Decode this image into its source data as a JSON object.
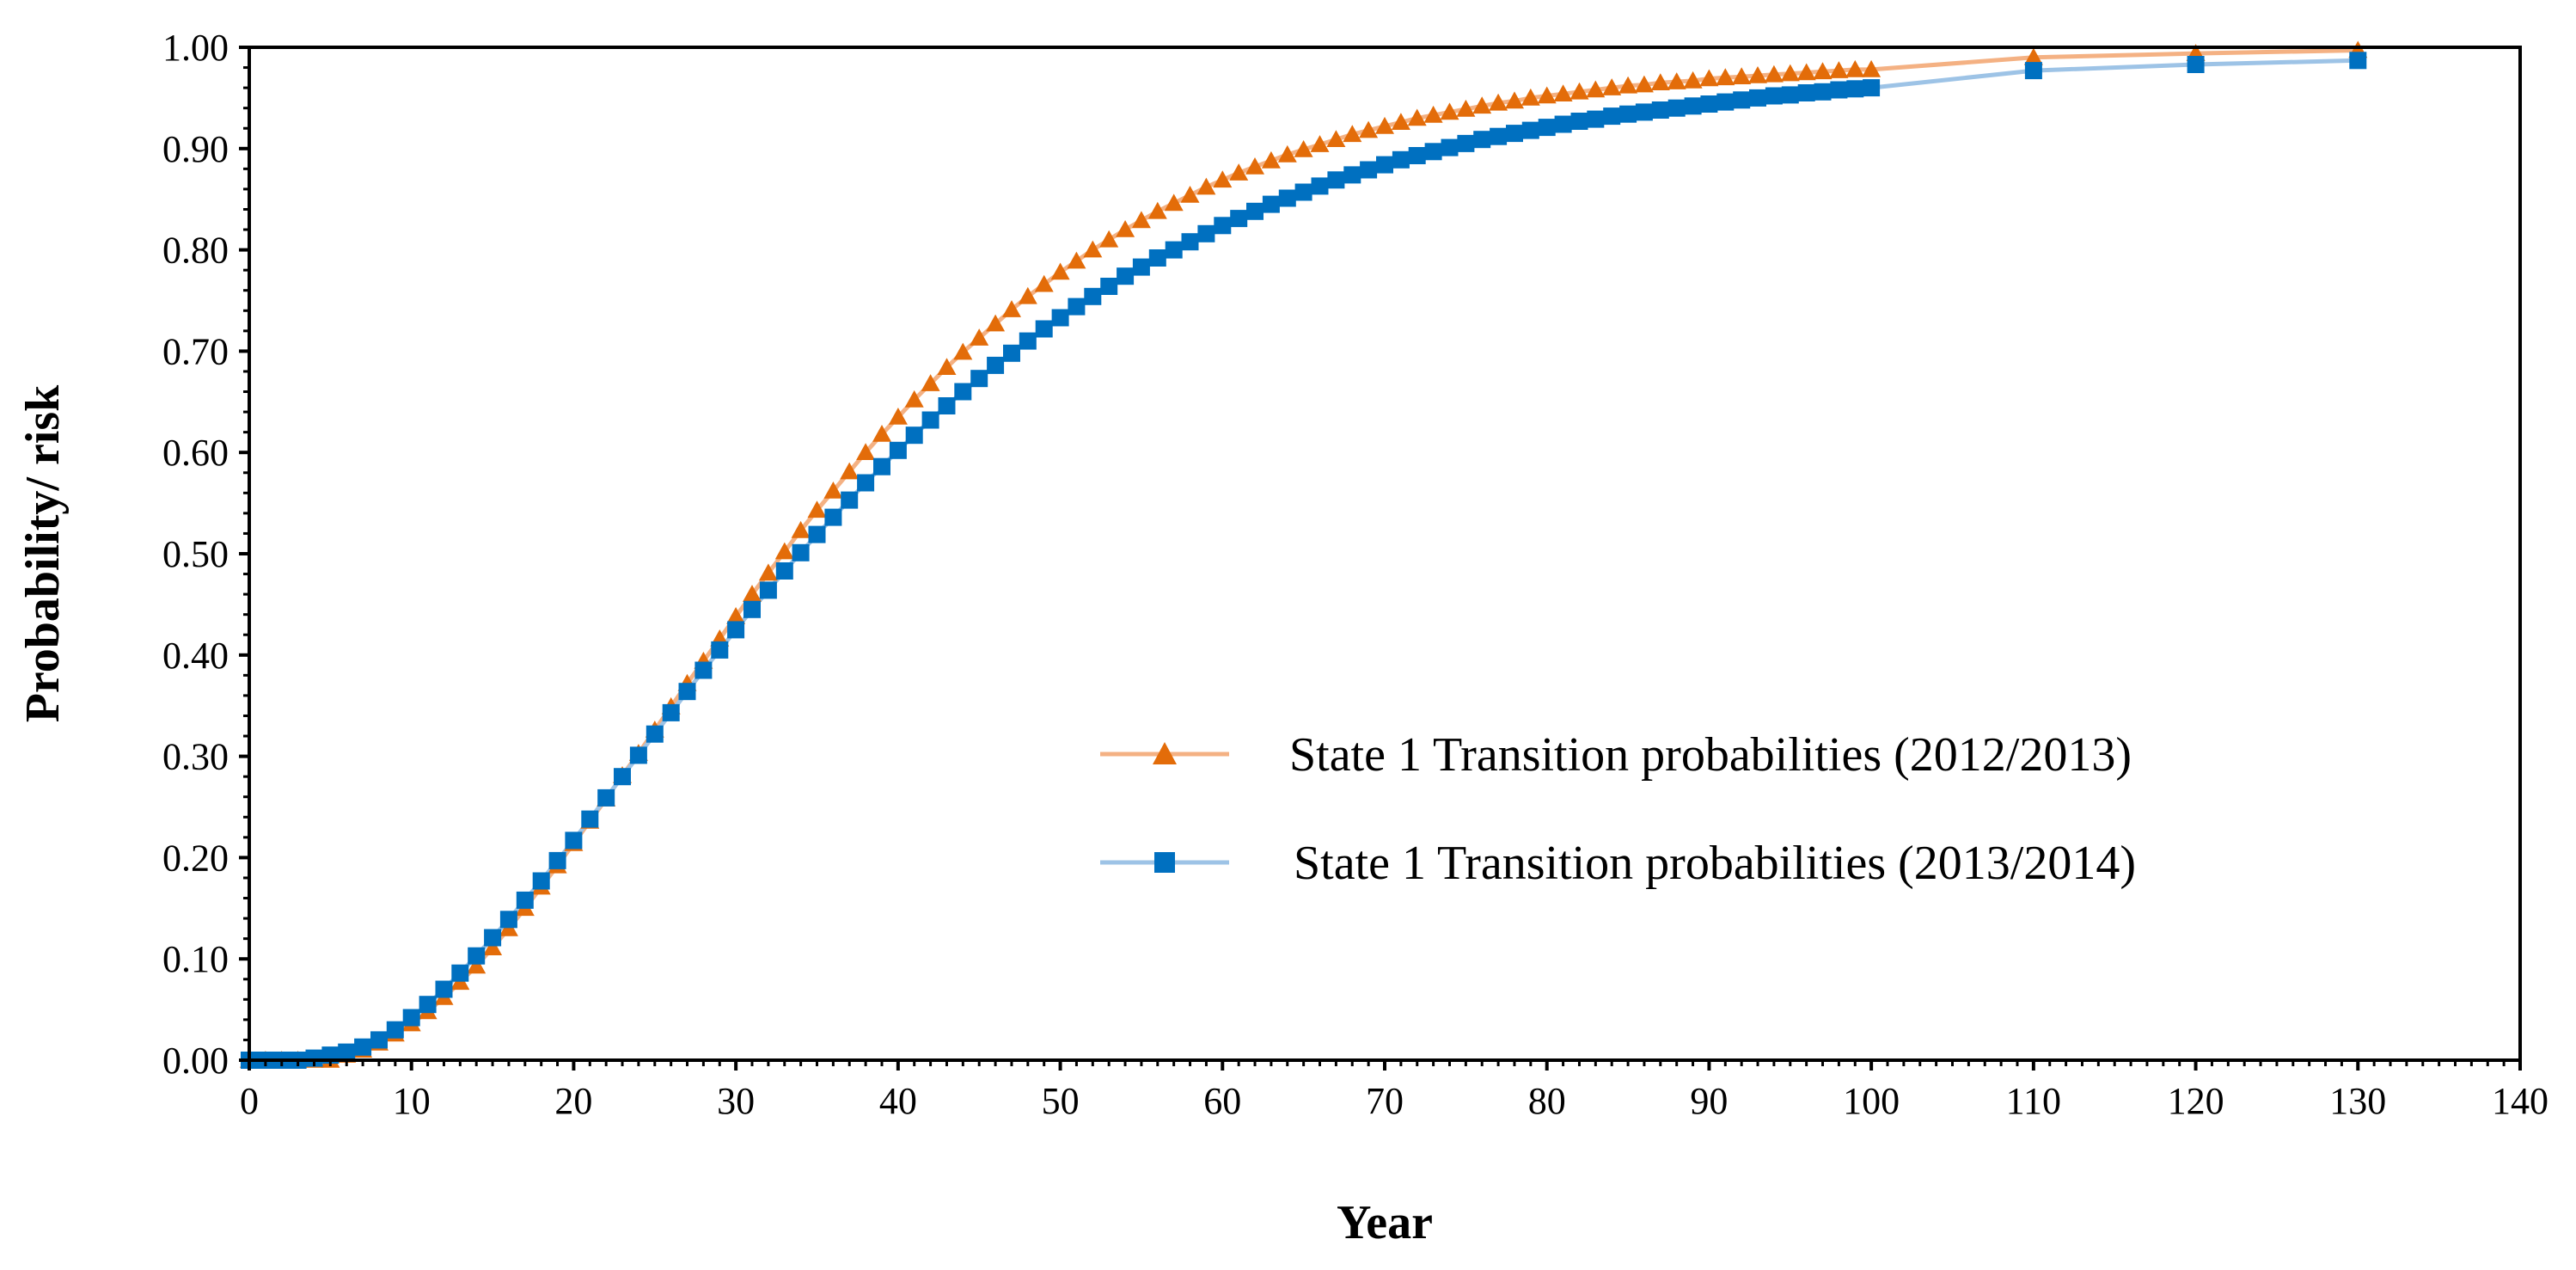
{
  "chart_data": {
    "type": "line",
    "xlabel": "Year",
    "ylabel": "Probability/ risk",
    "xlim": [
      0,
      140
    ],
    "ylim": [
      0,
      1
    ],
    "x_ticks": [
      "0",
      "10",
      "20",
      "30",
      "40",
      "50",
      "60",
      "70",
      "80",
      "90",
      "100",
      "110",
      "120",
      "130",
      "140"
    ],
    "y_ticks": [
      "0.00",
      "0.10",
      "0.20",
      "0.30",
      "0.40",
      "0.50",
      "0.60",
      "0.70",
      "0.80",
      "0.90",
      "1.00"
    ],
    "grid": false,
    "legend_position": "center-right",
    "series": [
      {
        "name": "State 1 Transition probabilities (2012/2013)",
        "color": "#e36c09",
        "line_color": "#f4b183",
        "marker": "triangle",
        "x": [
          0,
          1,
          2,
          3,
          4,
          5,
          6,
          7,
          8,
          9,
          10,
          11,
          12,
          13,
          14,
          15,
          16,
          17,
          18,
          19,
          20,
          21,
          22,
          23,
          24,
          25,
          26,
          27,
          28,
          29,
          30,
          31,
          32,
          33,
          34,
          35,
          36,
          37,
          38,
          39,
          40,
          41,
          42,
          43,
          44,
          45,
          46,
          47,
          48,
          49,
          50,
          51,
          52,
          53,
          54,
          55,
          56,
          57,
          58,
          59,
          60,
          61,
          62,
          63,
          64,
          65,
          66,
          67,
          68,
          69,
          70,
          71,
          72,
          73,
          74,
          75,
          76,
          77,
          78,
          79,
          80,
          81,
          82,
          83,
          84,
          85,
          86,
          87,
          88,
          89,
          90,
          91,
          92,
          93,
          94,
          95,
          96,
          97,
          98,
          99,
          100,
          110,
          120,
          130
        ],
        "y": [
          0,
          0,
          0,
          0,
          0,
          0,
          0.005,
          0.01,
          0.017,
          0.026,
          0.036,
          0.048,
          0.062,
          0.077,
          0.093,
          0.111,
          0.13,
          0.15,
          0.171,
          0.192,
          0.214,
          0.236,
          0.258,
          0.281,
          0.303,
          0.326,
          0.349,
          0.372,
          0.394,
          0.416,
          0.438,
          0.46,
          0.481,
          0.502,
          0.523,
          0.543,
          0.562,
          0.581,
          0.6,
          0.618,
          0.635,
          0.652,
          0.668,
          0.684,
          0.699,
          0.713,
          0.727,
          0.741,
          0.754,
          0.766,
          0.778,
          0.789,
          0.8,
          0.81,
          0.82,
          0.829,
          0.838,
          0.846,
          0.854,
          0.862,
          0.869,
          0.876,
          0.882,
          0.888,
          0.894,
          0.899,
          0.904,
          0.909,
          0.914,
          0.918,
          0.922,
          0.926,
          0.93,
          0.933,
          0.936,
          0.939,
          0.942,
          0.945,
          0.947,
          0.95,
          0.952,
          0.954,
          0.956,
          0.958,
          0.96,
          0.962,
          0.963,
          0.965,
          0.966,
          0.967,
          0.969,
          0.97,
          0.971,
          0.972,
          0.973,
          0.974,
          0.975,
          0.976,
          0.977,
          0.978,
          0.978,
          0.99,
          0.994,
          0.997
        ]
      },
      {
        "name": "State 1 Transition probabilities (2013/2014)",
        "color": "#0070c0",
        "line_color": "#9dc3e6",
        "marker": "square",
        "x": [
          0,
          1,
          2,
          3,
          4,
          5,
          6,
          7,
          8,
          9,
          10,
          11,
          12,
          13,
          14,
          15,
          16,
          17,
          18,
          19,
          20,
          21,
          22,
          23,
          24,
          25,
          26,
          27,
          28,
          29,
          30,
          31,
          32,
          33,
          34,
          35,
          36,
          37,
          38,
          39,
          40,
          41,
          42,
          43,
          44,
          45,
          46,
          47,
          48,
          49,
          50,
          51,
          52,
          53,
          54,
          55,
          56,
          57,
          58,
          59,
          60,
          61,
          62,
          63,
          64,
          65,
          66,
          67,
          68,
          69,
          70,
          71,
          72,
          73,
          74,
          75,
          76,
          77,
          78,
          79,
          80,
          81,
          82,
          83,
          84,
          85,
          86,
          87,
          88,
          89,
          90,
          91,
          92,
          93,
          94,
          95,
          96,
          97,
          98,
          99,
          100,
          110,
          120,
          130
        ],
        "y": [
          0,
          0,
          0,
          0,
          0.002,
          0.005,
          0.008,
          0.013,
          0.02,
          0.03,
          0.042,
          0.055,
          0.07,
          0.086,
          0.103,
          0.121,
          0.139,
          0.158,
          0.177,
          0.197,
          0.217,
          0.238,
          0.259,
          0.28,
          0.301,
          0.322,
          0.343,
          0.364,
          0.385,
          0.405,
          0.425,
          0.445,
          0.464,
          0.483,
          0.501,
          0.519,
          0.536,
          0.553,
          0.57,
          0.586,
          0.602,
          0.617,
          0.632,
          0.646,
          0.66,
          0.673,
          0.686,
          0.698,
          0.71,
          0.722,
          0.733,
          0.744,
          0.754,
          0.764,
          0.774,
          0.783,
          0.792,
          0.8,
          0.808,
          0.816,
          0.824,
          0.831,
          0.838,
          0.845,
          0.851,
          0.857,
          0.863,
          0.869,
          0.874,
          0.879,
          0.884,
          0.889,
          0.893,
          0.897,
          0.901,
          0.905,
          0.909,
          0.912,
          0.915,
          0.918,
          0.921,
          0.924,
          0.927,
          0.929,
          0.932,
          0.934,
          0.936,
          0.938,
          0.94,
          0.942,
          0.944,
          0.946,
          0.948,
          0.95,
          0.952,
          0.953,
          0.955,
          0.956,
          0.958,
          0.959,
          0.96,
          0.977,
          0.983,
          0.987
        ]
      }
    ]
  }
}
